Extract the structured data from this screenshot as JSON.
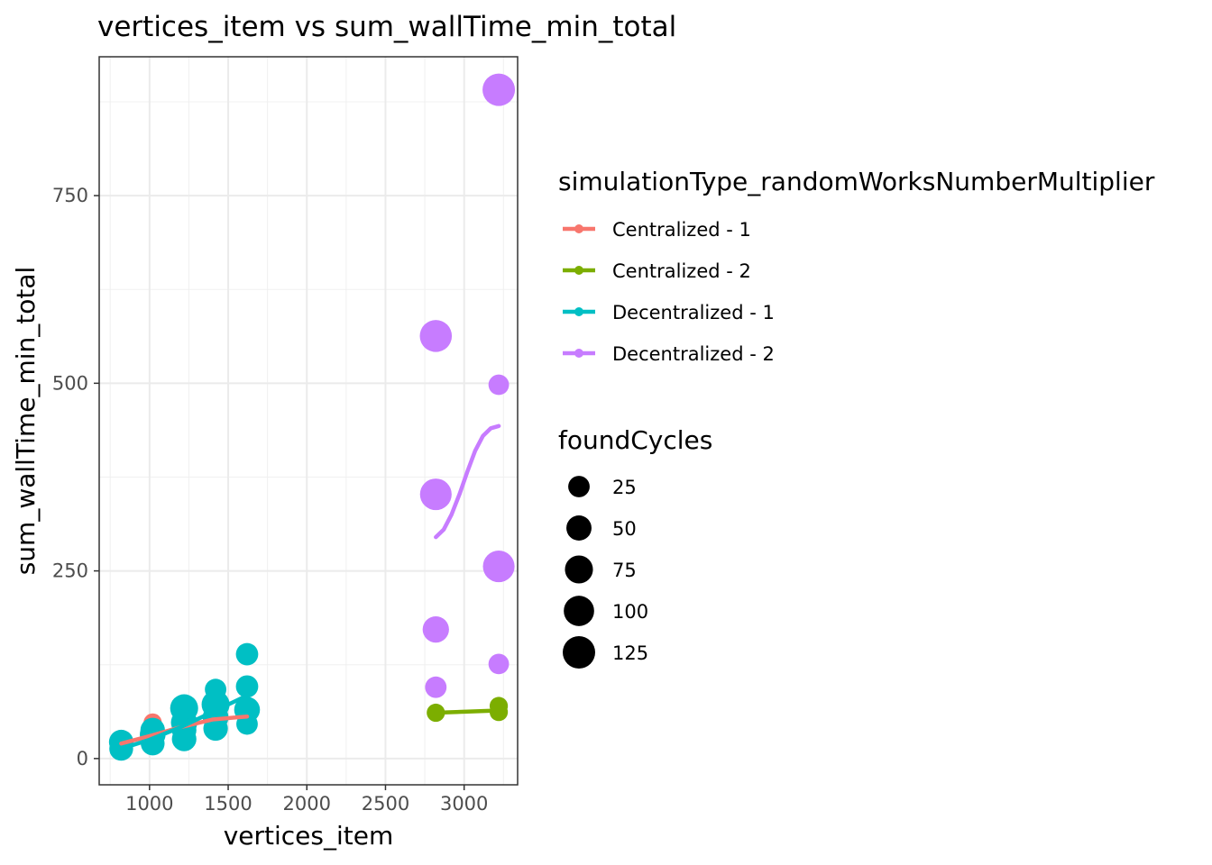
{
  "chart_data": {
    "type": "scatter",
    "title": "vertices_item  vs  sum_wallTime_min_total",
    "xlabel": "vertices_item",
    "ylabel": "sum_wallTime_min_total",
    "xlim": [
      680,
      3340
    ],
    "ylim": [
      -35,
      935
    ],
    "x_ticks": [
      1000,
      1500,
      2000,
      2500,
      3000
    ],
    "y_ticks": [
      0,
      250,
      500,
      750
    ],
    "x_tick_labels": [
      "1000",
      "1500",
      "2000",
      "2500",
      "3000"
    ],
    "y_tick_labels": [
      "0",
      "250",
      "500",
      "750"
    ],
    "grid": true,
    "legend_placement": "right",
    "color_legend": {
      "title": "simulationType_randomWorksNumberMultiplier",
      "entries": [
        "Centralized - 1",
        "Centralized - 2",
        "Decentralized - 1",
        "Decentralized - 2"
      ]
    },
    "size_legend": {
      "title": "foundCycles",
      "entries": [
        {
          "label": "25",
          "value": 25
        },
        {
          "label": "50",
          "value": 50
        },
        {
          "label": "75",
          "value": 75
        },
        {
          "label": "100",
          "value": 100
        },
        {
          "label": "125",
          "value": 125
        }
      ]
    },
    "series": [
      {
        "name": "Centralized - 1",
        "color": "#F8766D",
        "points": [
          {
            "x": 820,
            "y": 22,
            "size": 25
          },
          {
            "x": 1020,
            "y": 48,
            "size": 10
          },
          {
            "x": 1020,
            "y": 30,
            "size": 12
          },
          {
            "x": 1220,
            "y": 60,
            "size": 10
          },
          {
            "x": 1220,
            "y": 40,
            "size": 12
          },
          {
            "x": 1420,
            "y": 55,
            "size": 12
          },
          {
            "x": 1620,
            "y": 58,
            "size": 12
          }
        ],
        "trend": [
          {
            "x": 820,
            "y": 20
          },
          {
            "x": 1000,
            "y": 30
          },
          {
            "x": 1200,
            "y": 42
          },
          {
            "x": 1400,
            "y": 52
          },
          {
            "x": 1620,
            "y": 56
          }
        ]
      },
      {
        "name": "Centralized - 2",
        "color": "#7CAE00",
        "points": [
          {
            "x": 2820,
            "y": 61,
            "size": 10
          },
          {
            "x": 3220,
            "y": 70,
            "size": 10
          },
          {
            "x": 3220,
            "y": 62,
            "size": 10
          }
        ],
        "trend": [
          {
            "x": 2820,
            "y": 61
          },
          {
            "x": 3220,
            "y": 64
          }
        ]
      },
      {
        "name": "Decentralized - 1",
        "color": "#00BFC4",
        "points": [
          {
            "x": 820,
            "y": 22,
            "size": 45
          },
          {
            "x": 820,
            "y": 13,
            "size": 40
          },
          {
            "x": 1020,
            "y": 38,
            "size": 45
          },
          {
            "x": 1020,
            "y": 32,
            "size": 55
          },
          {
            "x": 1020,
            "y": 20,
            "size": 40
          },
          {
            "x": 1220,
            "y": 67,
            "size": 75
          },
          {
            "x": 1220,
            "y": 48,
            "size": 60
          },
          {
            "x": 1220,
            "y": 38,
            "size": 45
          },
          {
            "x": 1220,
            "y": 26,
            "size": 45
          },
          {
            "x": 1420,
            "y": 92,
            "size": 25
          },
          {
            "x": 1420,
            "y": 72,
            "size": 75
          },
          {
            "x": 1420,
            "y": 55,
            "size": 55
          },
          {
            "x": 1420,
            "y": 40,
            "size": 45
          },
          {
            "x": 1620,
            "y": 139,
            "size": 30
          },
          {
            "x": 1620,
            "y": 96,
            "size": 30
          },
          {
            "x": 1620,
            "y": 65,
            "size": 55
          },
          {
            "x": 1620,
            "y": 46,
            "size": 25
          }
        ],
        "trend": [
          {
            "x": 820,
            "y": 13
          },
          {
            "x": 1000,
            "y": 25
          },
          {
            "x": 1200,
            "y": 42
          },
          {
            "x": 1400,
            "y": 62
          },
          {
            "x": 1620,
            "y": 84
          }
        ]
      },
      {
        "name": "Decentralized - 2",
        "color": "#C77CFF",
        "points": [
          {
            "x": 3220,
            "y": 891,
            "size": 125
          },
          {
            "x": 2820,
            "y": 563,
            "size": 120
          },
          {
            "x": 3220,
            "y": 498,
            "size": 20
          },
          {
            "x": 2820,
            "y": 352,
            "size": 115
          },
          {
            "x": 3220,
            "y": 256,
            "size": 115
          },
          {
            "x": 2820,
            "y": 172,
            "size": 60
          },
          {
            "x": 3220,
            "y": 126,
            "size": 20
          },
          {
            "x": 2820,
            "y": 95,
            "size": 25
          }
        ],
        "trend": [
          {
            "x": 2820,
            "y": 295
          },
          {
            "x": 2870,
            "y": 305
          },
          {
            "x": 2920,
            "y": 325
          },
          {
            "x": 2970,
            "y": 352
          },
          {
            "x": 3020,
            "y": 382
          },
          {
            "x": 3070,
            "y": 410
          },
          {
            "x": 3120,
            "y": 430
          },
          {
            "x": 3170,
            "y": 440
          },
          {
            "x": 3220,
            "y": 443
          }
        ]
      }
    ]
  }
}
